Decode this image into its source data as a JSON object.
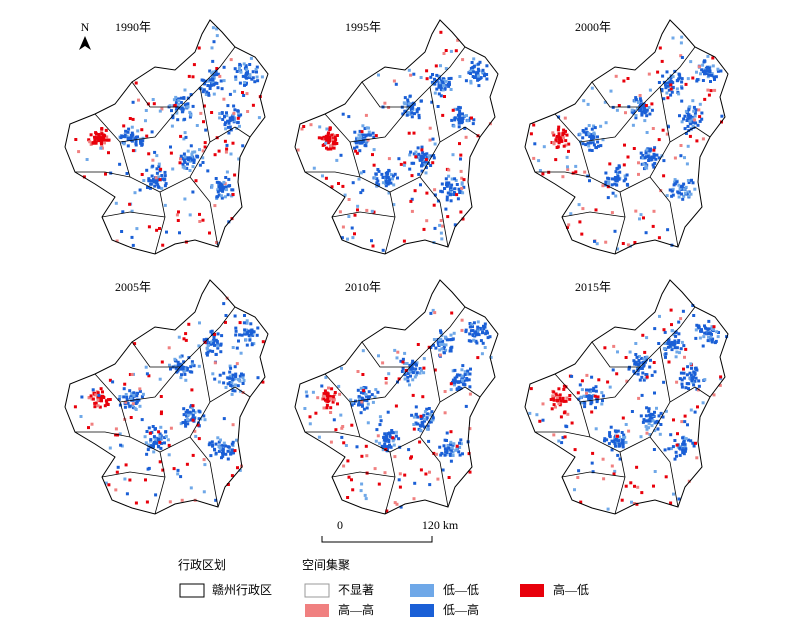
{
  "panels": [
    {
      "label": "1990年"
    },
    {
      "label": "1995年"
    },
    {
      "label": "2000年"
    },
    {
      "label": "2005年"
    },
    {
      "label": "2010年"
    },
    {
      "label": "2015年"
    }
  ],
  "north": "N",
  "scale_bar": {
    "labels": [
      "0",
      "120 km"
    ]
  },
  "legend": {
    "boundary": {
      "title": "行政区划",
      "items": [
        "赣州行政区"
      ]
    },
    "cluster": {
      "title": "空间集聚",
      "items": [
        "不显著",
        "高—高",
        "低—低",
        "低—高",
        "高—低"
      ]
    }
  }
}
